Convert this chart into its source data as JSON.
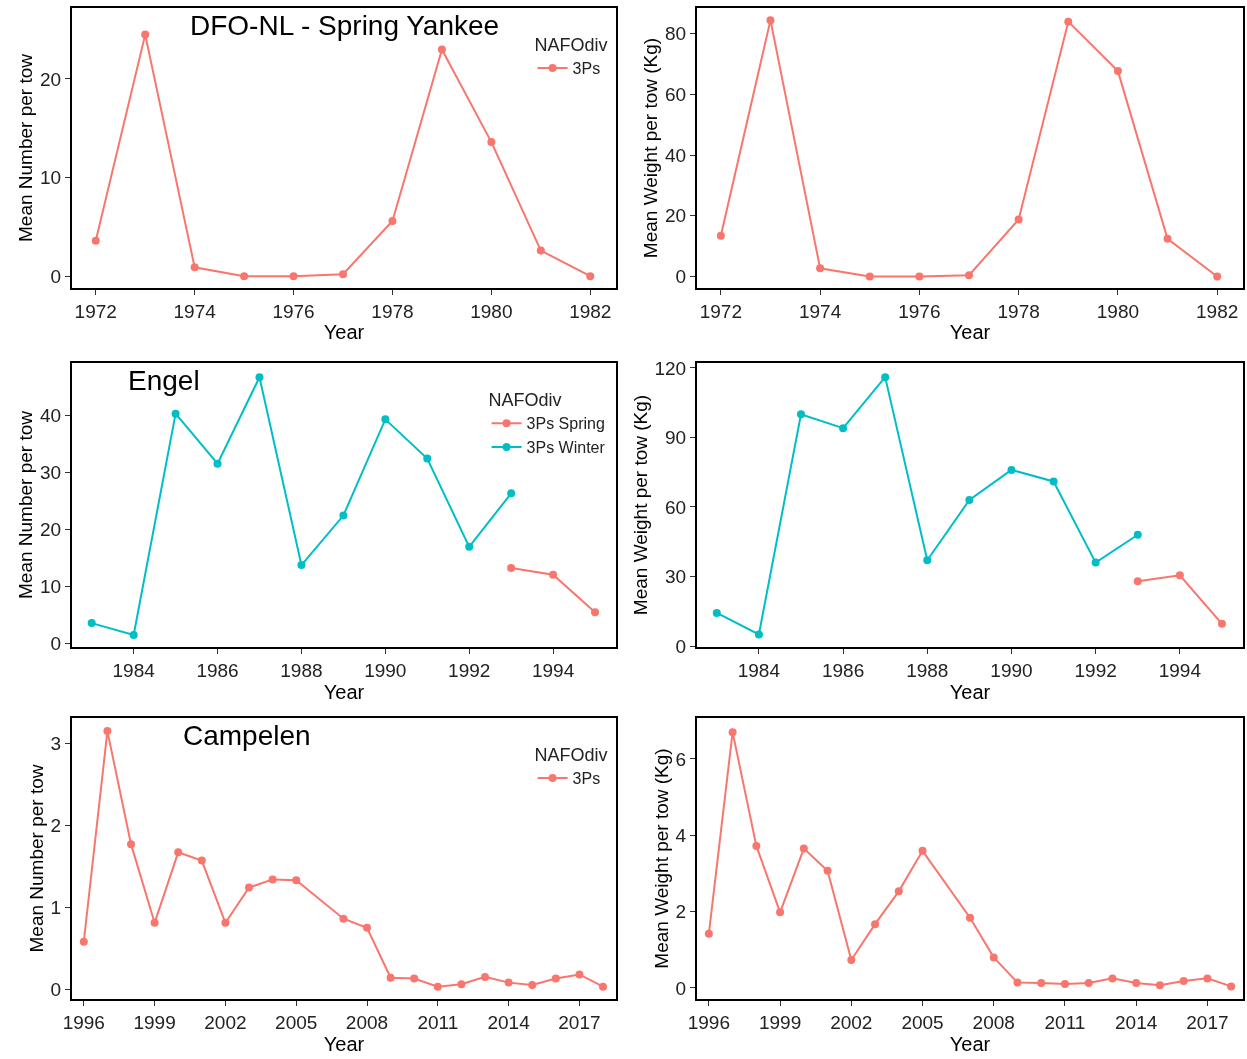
{
  "chart_data": [
    {
      "type": "line",
      "title": "DFO-NL - Spring Yankee",
      "xlabel": "Year",
      "ylabel": "Mean Number per tow",
      "legend_title": "NAFOdiv",
      "legend": "top right",
      "marker": "circle",
      "line_style": "solid",
      "grid": false,
      "x": [
        1972,
        1973,
        1974,
        1975,
        1976,
        1977,
        1978,
        1979,
        1980,
        1981,
        1982
      ],
      "series": [
        {
          "name": "3Ps",
          "color": "#f8766d",
          "values": [
            3.6,
            24.5,
            0.9,
            0,
            0,
            0.2,
            5.6,
            23,
            13.6,
            2.6,
            0
          ]
        }
      ],
      "xlim": [
        1971.52,
        1982.52
      ],
      "xticks": [
        1972,
        1974,
        1976,
        1978,
        1980,
        1982
      ],
      "ylim": [
        -1.2,
        27.2
      ],
      "yticks": [
        0,
        10,
        20
      ]
    },
    {
      "type": "line",
      "xlabel": "Year",
      "ylabel": "Mean Weight per tow (Kg)",
      "legend": false,
      "marker": "circle",
      "line_style": "solid",
      "grid": false,
      "x": [
        1972,
        1973,
        1974,
        1975,
        1976,
        1977,
        1978,
        1979,
        1980,
        1981,
        1982
      ],
      "series": [
        {
          "color": "#f8766d",
          "values": [
            13.4,
            84.5,
            2.7,
            0,
            0,
            0.4,
            18.8,
            84,
            67.7,
            12.4,
            0
          ]
        }
      ],
      "xlim": [
        1971.52,
        1982.52
      ],
      "xticks": [
        1972,
        1974,
        1976,
        1978,
        1980,
        1982
      ],
      "ylim": [
        -3.8,
        88.5
      ],
      "yticks": [
        0,
        20,
        40,
        60,
        80
      ]
    },
    {
      "type": "line",
      "title": "Engel",
      "xlabel": "Year",
      "ylabel": "Mean Number per tow",
      "legend_title": "NAFOdiv",
      "legend": "top right",
      "marker": "circle",
      "line_style": "solid",
      "grid": false,
      "series": [
        {
          "name": "3Ps Spring",
          "color": "#f8766d",
          "x": [
            1993,
            1994,
            1995
          ],
          "values": [
            13.2,
            12,
            5.4
          ]
        },
        {
          "name": "3Ps Winter",
          "color": "#00bfc4",
          "x": [
            1983,
            1984,
            1985,
            1986,
            1987,
            1988,
            1989,
            1990,
            1991,
            1992,
            1993
          ],
          "values": [
            3.5,
            1.4,
            40.3,
            31.5,
            46.7,
            13.7,
            22.4,
            39.3,
            32.4,
            16.9,
            26.3
          ]
        }
      ],
      "xlim": [
        1982.53,
        1995.5
      ],
      "xticks": [
        1984,
        1986,
        1988,
        1990,
        1992,
        1994
      ],
      "ylim": [
        -0.7,
        49.2
      ],
      "yticks": [
        0,
        10,
        20,
        30,
        40
      ]
    },
    {
      "type": "line",
      "xlabel": "Year",
      "ylabel": "Mean Weight per tow (Kg)",
      "legend": false,
      "marker": "circle",
      "line_style": "solid",
      "grid": false,
      "series": [
        {
          "color": "#f8766d",
          "x": [
            1993,
            1994,
            1995
          ],
          "values": [
            28,
            30.5,
            9.6
          ]
        },
        {
          "color": "#00bfc4",
          "x": [
            1983,
            1984,
            1985,
            1986,
            1987,
            1988,
            1989,
            1990,
            1991,
            1992,
            1993
          ],
          "values": [
            14.3,
            5,
            100,
            94,
            116,
            37,
            63,
            76,
            71,
            36,
            48
          ]
        }
      ],
      "xlim": [
        1982.53,
        1995.5
      ],
      "xticks": [
        1984,
        1986,
        1988,
        1990,
        1992,
        1994
      ],
      "ylim": [
        -0.4,
        122.1
      ],
      "yticks": [
        0,
        30,
        60,
        90,
        120
      ]
    },
    {
      "type": "line",
      "title": "Campelen",
      "xlabel": "Year",
      "ylabel": "Mean Number per tow",
      "legend_title": "NAFOdiv",
      "legend": "top right",
      "marker": "circle",
      "line_style": "solid",
      "grid": false,
      "x": [
        1996,
        1997,
        1998,
        1999,
        2000,
        2001,
        2002,
        2003,
        2004,
        2005,
        2007,
        2008,
        2009,
        2010,
        2011,
        2012,
        2013,
        2014,
        2015,
        2016,
        2017,
        2018
      ],
      "series": [
        {
          "name": "3Ps",
          "color": "#f8766d",
          "values": [
            0.58,
            3.15,
            1.77,
            0.81,
            1.67,
            1.57,
            0.81,
            1.24,
            1.34,
            1.33,
            0.86,
            0.75,
            0.14,
            0.13,
            0.03,
            0.06,
            0.15,
            0.08,
            0.05,
            0.13,
            0.18,
            0.03
          ]
        }
      ],
      "xlim": [
        1995.5,
        2018.55
      ],
      "xticks": [
        1996,
        1999,
        2002,
        2005,
        2008,
        2011,
        2014,
        2017
      ],
      "ylim": [
        -0.12,
        3.31
      ],
      "yticks": [
        0,
        1,
        2,
        3
      ]
    },
    {
      "type": "line",
      "xlabel": "Year",
      "ylabel": "Mean Weight per tow (Kg)",
      "legend": false,
      "marker": "circle",
      "line_style": "solid",
      "grid": false,
      "x": [
        1996,
        1997,
        1998,
        1999,
        2000,
        2001,
        2002,
        2003,
        2004,
        2005,
        2007,
        2008,
        2009,
        2010,
        2011,
        2012,
        2013,
        2014,
        2015,
        2016,
        2017,
        2018
      ],
      "series": [
        {
          "color": "#f8766d",
          "values": [
            1.42,
            6.7,
            3.72,
            1.98,
            3.65,
            3.07,
            0.73,
            1.67,
            2.53,
            3.59,
            1.84,
            0.8,
            0.14,
            0.13,
            0.1,
            0.13,
            0.25,
            0.13,
            0.07,
            0.18,
            0.25,
            0.04
          ]
        }
      ],
      "xlim": [
        1995.5,
        2018.5
      ],
      "xticks": [
        1996,
        1999,
        2002,
        2005,
        2008,
        2011,
        2014,
        2017
      ],
      "ylim": [
        -0.29,
        7.07
      ],
      "yticks": [
        0,
        2,
        4,
        6
      ]
    }
  ]
}
